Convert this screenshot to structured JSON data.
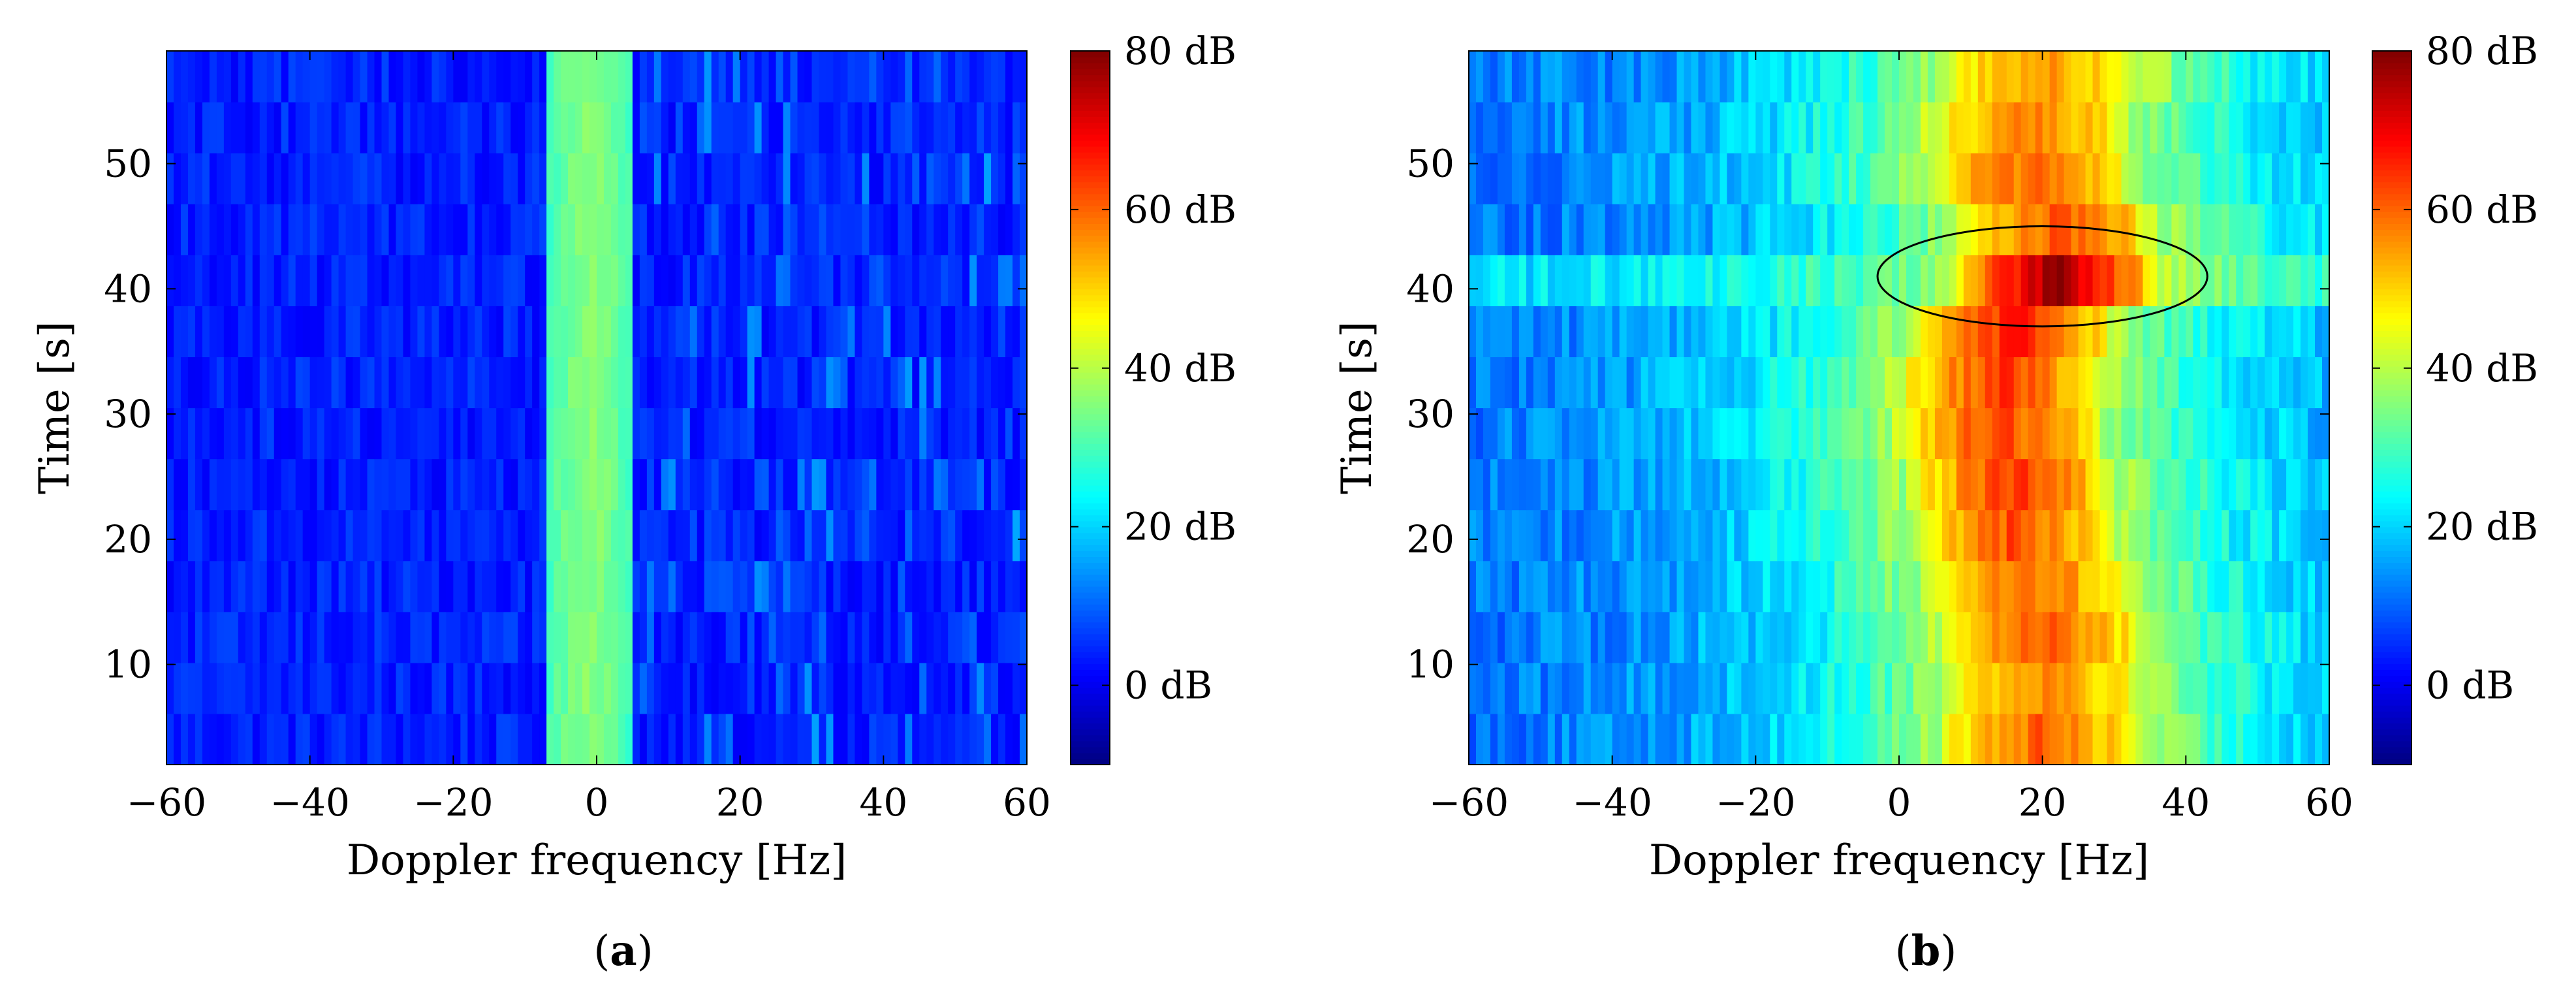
{
  "chart_data": [
    {
      "type": "heatmap",
      "panel_label": "a",
      "xlabel": "Doppler frequency [Hz]",
      "ylabel": "Time [s]",
      "xlim": [
        -60,
        60
      ],
      "ylim": [
        2,
        59
      ],
      "xticks": [
        -60,
        -40,
        -20,
        0,
        20,
        40,
        60
      ],
      "xtick_labels": [
        "−60",
        "−40",
        "−20",
        "0",
        "20",
        "40",
        "60"
      ],
      "yticks": [
        10,
        20,
        30,
        40,
        50
      ],
      "ytick_labels": [
        "10",
        "20",
        "30",
        "40",
        "50"
      ],
      "colorbar": {
        "unit": "dB",
        "range": [
          -10,
          80
        ],
        "ticks": [
          0,
          20,
          40,
          60,
          80
        ],
        "tick_labels": [
          "0 dB",
          "20 dB",
          "40 dB",
          "60 dB",
          "80 dB"
        ]
      },
      "time_rows": [
        4,
        8,
        12,
        16,
        20,
        24,
        28,
        32,
        36,
        40,
        44,
        48,
        52,
        56
      ],
      "freq_step_hz": 1,
      "model": {
        "background_db": 4,
        "noise_db": 7,
        "band": {
          "center_hz": -1,
          "half_width_hz": 6,
          "peak_db": 36,
          "edge_db": 27
        },
        "edge_scatter_db": [
          {
            "from_hz": 6,
            "to_hz": 60,
            "level_db": 9
          }
        ]
      },
      "annotation": null
    },
    {
      "type": "heatmap",
      "panel_label": "b",
      "xlabel": "Doppler frequency [Hz]",
      "ylabel": "Time [s]",
      "xlim": [
        -60,
        60
      ],
      "ylim": [
        2,
        59
      ],
      "xticks": [
        -60,
        -40,
        -20,
        0,
        20,
        40,
        60
      ],
      "xtick_labels": [
        "−60",
        "−40",
        "−20",
        "0",
        "20",
        "40",
        "60"
      ],
      "yticks": [
        10,
        20,
        30,
        40,
        50
      ],
      "ytick_labels": [
        "10",
        "20",
        "30",
        "40",
        "50"
      ],
      "colorbar": {
        "unit": "dB",
        "range": [
          -10,
          80
        ],
        "ticks": [
          0,
          20,
          40,
          60,
          80
        ],
        "tick_labels": [
          "0 dB",
          "20 dB",
          "40 dB",
          "60 dB",
          "80 dB"
        ]
      },
      "time_rows": [
        4,
        8,
        12,
        16,
        20,
        24,
        28,
        32,
        36,
        40,
        44,
        48,
        52,
        56
      ],
      "freq_step_hz": 1,
      "model": {
        "background_db": 10,
        "noise_db": 9,
        "band": {
          "center_hz": 16,
          "half_width_hz": 14,
          "peak_db": 62,
          "edge_db": 40
        },
        "skirt": {
          "from_hz": -60,
          "to_hz": 60,
          "spread_hz": 22
        },
        "row_peaks_db": [
          60,
          58,
          62,
          60,
          62,
          64,
          63,
          64,
          66,
          78,
          62,
          60,
          58,
          56
        ],
        "row_shift_hz": [
          4,
          4,
          4,
          2,
          0,
          0,
          -2,
          -2,
          0,
          6,
          6,
          2,
          2,
          4
        ],
        "bright_row_at_s": 41,
        "bright_row_background_db": 20
      },
      "annotation": {
        "shape": "ellipse",
        "center": [
          20,
          41
        ],
        "radius": [
          23,
          4
        ]
      }
    }
  ]
}
